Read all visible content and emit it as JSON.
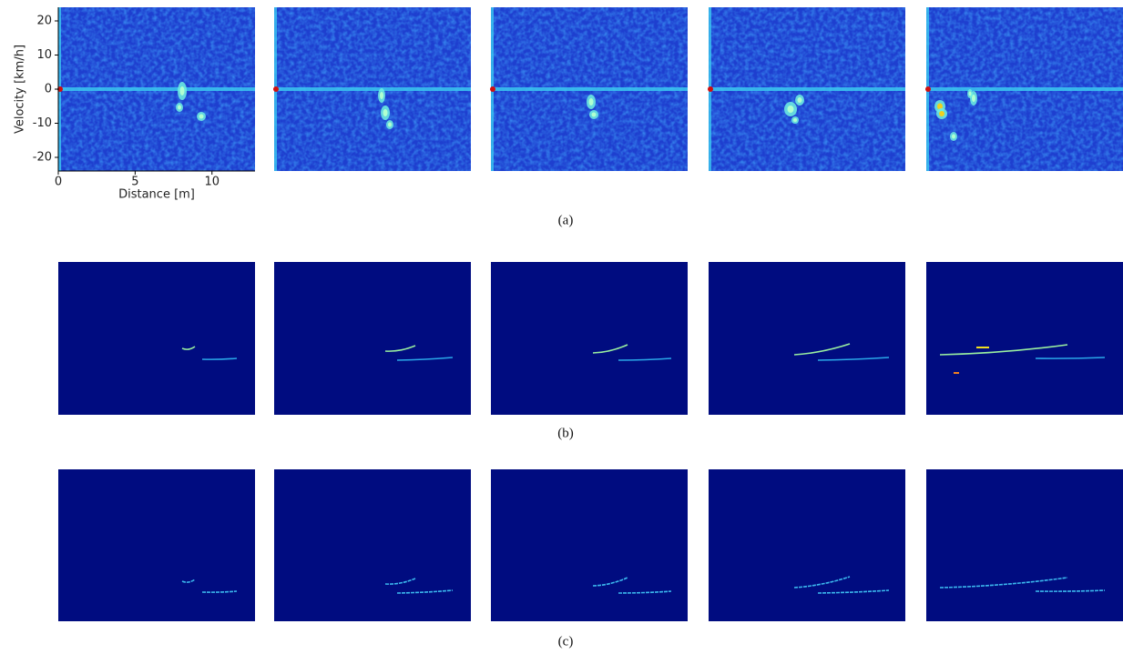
{
  "figure": {
    "axes": {
      "ylabel": "Velocity [km/h]",
      "xlabel": "Distance [m]",
      "yticks": [
        20,
        10,
        0,
        -10,
        -20
      ],
      "xticks": [
        0,
        5,
        10
      ],
      "ylim": [
        -24,
        24
      ],
      "xlim": [
        0,
        12.8
      ]
    },
    "rows": [
      {
        "caption": "(a)"
      },
      {
        "caption": "(b)"
      },
      {
        "caption": "(c)"
      }
    ]
  }
}
